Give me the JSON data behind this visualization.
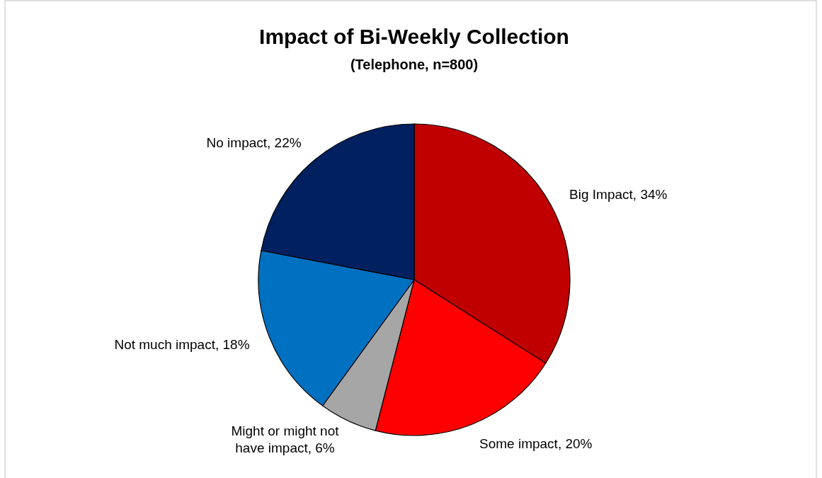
{
  "chart_data": {
    "type": "pie",
    "title": "Impact of Bi-Weekly Collection",
    "subtitle": "(Telephone, n=800)",
    "categories": [
      "Big Impact",
      "Some impact",
      "Might or might not have impact",
      "Not much impact",
      "No impact"
    ],
    "values": [
      34,
      20,
      6,
      18,
      22
    ],
    "value_labels": [
      "34%",
      "20%",
      "6%",
      "18%",
      "22%"
    ],
    "colors": [
      "#c00000",
      "#ff0000",
      "#a6a6a6",
      "#0070c0",
      "#002060"
    ]
  }
}
